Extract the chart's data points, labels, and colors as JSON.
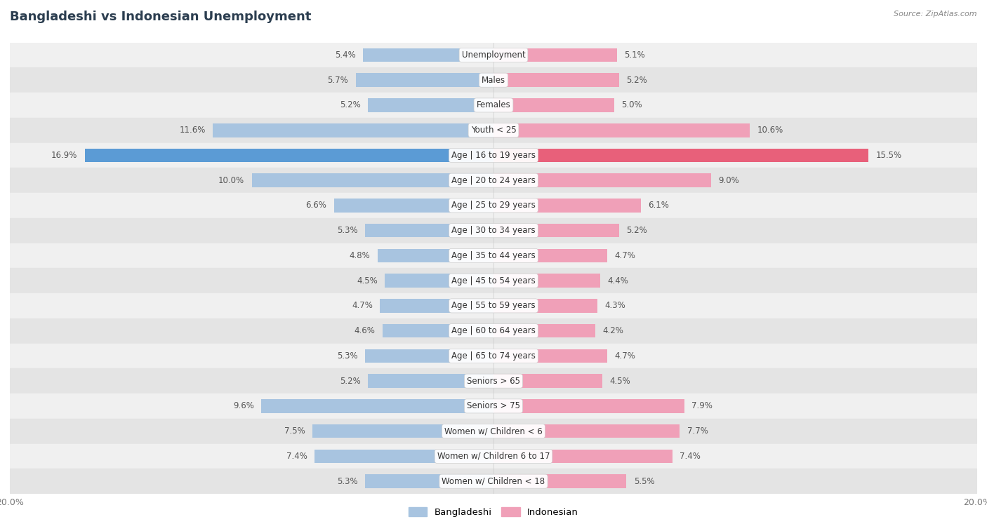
{
  "title": "Bangladeshi vs Indonesian Unemployment",
  "source": "Source: ZipAtlas.com",
  "categories": [
    "Unemployment",
    "Males",
    "Females",
    "Youth < 25",
    "Age | 16 to 19 years",
    "Age | 20 to 24 years",
    "Age | 25 to 29 years",
    "Age | 30 to 34 years",
    "Age | 35 to 44 years",
    "Age | 45 to 54 years",
    "Age | 55 to 59 years",
    "Age | 60 to 64 years",
    "Age | 65 to 74 years",
    "Seniors > 65",
    "Seniors > 75",
    "Women w/ Children < 6",
    "Women w/ Children 6 to 17",
    "Women w/ Children < 18"
  ],
  "bangladeshi": [
    5.4,
    5.7,
    5.2,
    11.6,
    16.9,
    10.0,
    6.6,
    5.3,
    4.8,
    4.5,
    4.7,
    4.6,
    5.3,
    5.2,
    9.6,
    7.5,
    7.4,
    5.3
  ],
  "indonesian": [
    5.1,
    5.2,
    5.0,
    10.6,
    15.5,
    9.0,
    6.1,
    5.2,
    4.7,
    4.4,
    4.3,
    4.2,
    4.7,
    4.5,
    7.9,
    7.7,
    7.4,
    5.5
  ],
  "bangladeshi_color": "#a8c4e0",
  "indonesian_color": "#f0a0b8",
  "bangladeshi_highlight": "#5b9bd5",
  "indonesian_highlight": "#e8607a",
  "highlight_index": 4,
  "xlim": 20.0,
  "bg_color": "#ffffff",
  "row_colors": [
    "#f0f0f0",
    "#e4e4e4"
  ],
  "bar_height": 0.55,
  "label_fontsize": 8.5,
  "value_fontsize": 8.5,
  "title_fontsize": 13,
  "source_fontsize": 8
}
